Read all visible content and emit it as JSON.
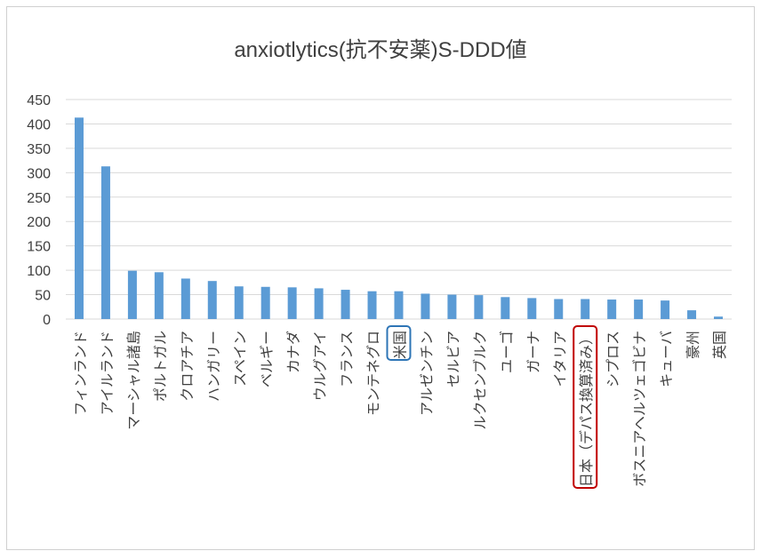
{
  "chart_data": {
    "type": "bar",
    "title": "anxiotlytics(抗不安薬)S-DDD値",
    "xlabel": "",
    "ylabel": "",
    "ylim": [
      0,
      450
    ],
    "yticks": [
      0,
      50,
      100,
      150,
      200,
      250,
      300,
      350,
      400,
      450
    ],
    "grid": true,
    "legend": "none",
    "bar_color": "#5b9bd5",
    "categories": [
      "フィンランド",
      "アイルランド",
      "マーシャル諸島",
      "ポルトガル",
      "クロアチア",
      "ハンガリー",
      "スペイン",
      "ベルギー",
      "カナダ",
      "ウルグアイ",
      "フランス",
      "モンテネグロ",
      "米国",
      "アルゼンチン",
      "セルビア",
      "ルクセンブルク",
      "ユーゴ",
      "ガーナ",
      "イタリア",
      "日本（デパス換算済み）",
      "シプロス",
      "ボスニアヘルツェゴビナ",
      "キューバ",
      "豪州",
      "英国"
    ],
    "values": [
      413,
      313,
      99,
      96,
      83,
      78,
      67,
      66,
      65,
      63,
      60,
      57,
      57,
      52,
      50,
      49,
      45,
      43,
      41,
      41,
      40,
      40,
      38,
      18,
      5
    ],
    "highlights": [
      {
        "category": "米国",
        "color": "#2e75b6"
      },
      {
        "category": "日本（デパス換算済み）",
        "color": "#c00000"
      }
    ]
  }
}
